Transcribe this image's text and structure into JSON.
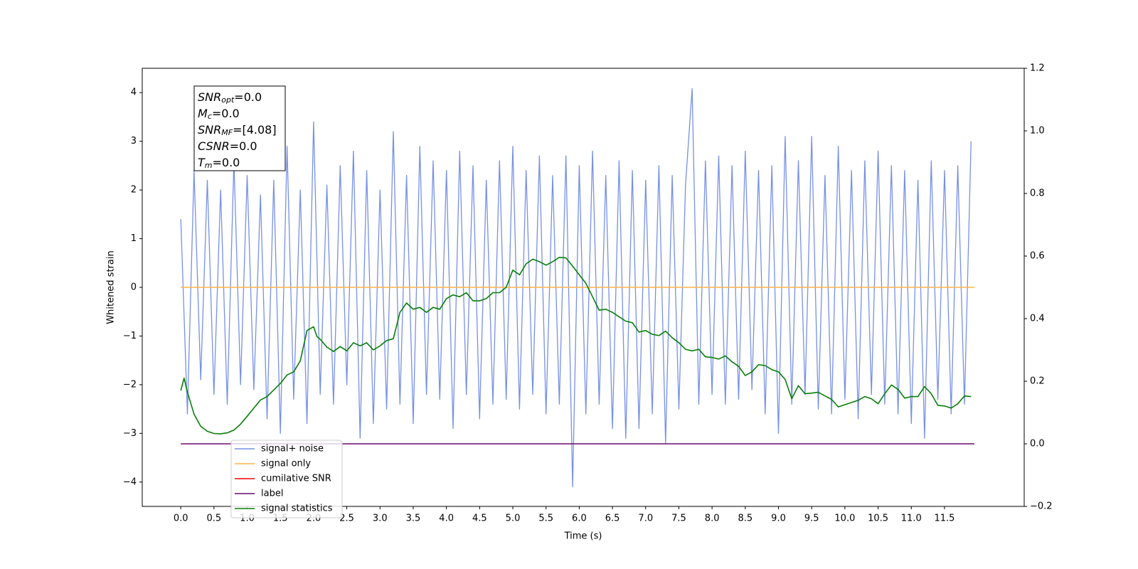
{
  "chart_data": {
    "type": "line",
    "xlabel": "Time (s)",
    "ylabel": "Whitened strain",
    "xlim": [
      -0.58,
      12.7
    ],
    "ylim": [
      -4.5,
      4.5
    ],
    "y2lim": [
      -0.2,
      1.2
    ],
    "xticks": [
      {
        "value": 0,
        "label": "0.0"
      },
      {
        "value": 0.5,
        "label": "0.5"
      },
      {
        "value": 1,
        "label": "1.0"
      },
      {
        "value": 1.5,
        "label": "1.5"
      },
      {
        "value": 2,
        "label": "2.0"
      },
      {
        "value": 2.5,
        "label": "2.5"
      },
      {
        "value": 3,
        "label": "3.0"
      },
      {
        "value": 3.5,
        "label": "3.5"
      },
      {
        "value": 4,
        "label": "4.0"
      },
      {
        "value": 4.5,
        "label": "4.5"
      },
      {
        "value": 5,
        "label": "5.0"
      },
      {
        "value": 5.5,
        "label": "5.5"
      },
      {
        "value": 6,
        "label": "6.0"
      },
      {
        "value": 6.5,
        "label": "6.5"
      },
      {
        "value": 7,
        "label": "7.0"
      },
      {
        "value": 7.5,
        "label": "7.5"
      },
      {
        "value": 8,
        "label": "8.0"
      },
      {
        "value": 8.5,
        "label": "8.5"
      },
      {
        "value": 9,
        "label": "9.0"
      },
      {
        "value": 9.5,
        "label": "9.5"
      },
      {
        "value": 10,
        "label": "10.0"
      },
      {
        "value": 10.5,
        "label": "10.5"
      },
      {
        "value": 11,
        "label": "11.0"
      },
      {
        "value": 11.5,
        "label": "11.5"
      }
    ],
    "yticks": [
      {
        "value": -4,
        "label": "−4"
      },
      {
        "value": -3,
        "label": "−3"
      },
      {
        "value": -2,
        "label": "−2"
      },
      {
        "value": -1,
        "label": "−1"
      },
      0,
      1,
      2,
      3,
      4
    ],
    "y2ticks": [
      {
        "value": -0.2,
        "label": "−0.2"
      },
      {
        "value": 0,
        "label": "0.0"
      },
      0.2,
      0.4,
      0.6,
      0.8,
      {
        "value": 1,
        "label": "1.0"
      },
      1.2
    ],
    "grid": false,
    "legend_position": "lower left",
    "annotations": [
      {
        "main": "SNR",
        "sub": "opt",
        "rest": "=0.0"
      },
      {
        "main": "M",
        "sub": "c",
        "rest": "=0.0"
      },
      {
        "main": "SNR",
        "sub": "MF",
        "rest": "=[4.08]"
      },
      {
        "main": "CSNR",
        "rest": "=0.0"
      },
      {
        "main": "T",
        "sub": "m",
        "rest": "=0.0"
      }
    ],
    "series": [
      {
        "name": "signal+ noise",
        "color": "#7790e6",
        "axis": "y",
        "x": [
          0,
          0.1,
          0.2,
          0.3,
          0.4,
          0.5,
          0.6,
          0.7,
          0.8,
          0.9,
          1,
          1.1,
          1.2,
          1.3,
          1.4,
          1.5,
          1.6,
          1.7,
          1.8,
          1.9,
          2,
          2.1,
          2.2,
          2.3,
          2.4,
          2.5,
          2.6,
          2.7,
          2.8,
          2.9,
          3,
          3.1,
          3.2,
          3.3,
          3.4,
          3.5,
          3.6,
          3.7,
          3.8,
          3.9,
          4,
          4.1,
          4.2,
          4.3,
          4.4,
          4.5,
          4.6,
          4.7,
          4.8,
          4.9,
          5,
          5.1,
          5.2,
          5.3,
          5.4,
          5.5,
          5.6,
          5.7,
          5.8,
          5.9,
          6,
          6.1,
          6.2,
          6.3,
          6.4,
          6.5,
          6.6,
          6.7,
          6.8,
          6.9,
          7,
          7.1,
          7.2,
          7.3,
          7.4,
          7.5,
          7.6,
          7.7,
          7.8,
          7.9,
          8,
          8.1,
          8.2,
          8.3,
          8.4,
          8.5,
          8.6,
          8.7,
          8.8,
          8.9,
          9,
          9.1,
          9.2,
          9.3,
          9.4,
          9.5,
          9.6,
          9.7,
          9.8,
          9.9,
          10,
          10.1,
          10.2,
          10.3,
          10.4,
          10.5,
          10.6,
          10.7,
          10.8,
          10.9,
          11,
          11.1,
          11.2,
          11.3,
          11.4,
          11.5,
          11.6,
          11.7,
          11.8,
          11.9
        ],
        "values": [
          1.4,
          -2.6,
          2.4,
          -1.9,
          2.2,
          -2.2,
          2,
          -2.4,
          2.6,
          -2,
          2.3,
          -2.1,
          1.9,
          -2.7,
          2.2,
          -3,
          2.9,
          -2.3,
          2,
          -2.8,
          3.4,
          -2.2,
          2.1,
          -2.4,
          2.5,
          -2,
          2.8,
          -3.1,
          2.4,
          -2.8,
          2,
          -2.5,
          3.2,
          -2.4,
          2.3,
          -2.8,
          2.9,
          -2.2,
          2.6,
          -2.3,
          2.4,
          -2.9,
          2.8,
          -2.2,
          2.5,
          -2.7,
          2.2,
          -2.4,
          2.6,
          -2.3,
          2.9,
          -2.5,
          2.4,
          -2.2,
          2.7,
          -2.6,
          2.3,
          -2.4,
          2.7,
          -4.1,
          2.5,
          -2.6,
          2.8,
          -2.4,
          2.3,
          -2.9,
          2.6,
          -3.1,
          2.4,
          -2.9,
          2.2,
          -2.6,
          2.5,
          -3.2,
          2.3,
          -2.5,
          2.1,
          4.08,
          -2.4,
          2.6,
          -2.2,
          2.7,
          -2.4,
          2.5,
          -2.3,
          2.8,
          -2.1,
          2.4,
          -2.6,
          2.5,
          -3,
          3.1,
          -2.4,
          2.6,
          -2.2,
          3.1,
          -2.5,
          2.3,
          -2.6,
          2.9,
          -2.3,
          2.4,
          -2.7,
          2.6,
          -2.2,
          2.8,
          -2.4,
          2.5,
          -2.6,
          2.4,
          -2.8,
          2.2,
          -3.1,
          2.6,
          -2.3,
          2.4,
          -2.6,
          2.5,
          -2.4,
          3
        ]
      },
      {
        "name": "signal only",
        "color": "#ffb347",
        "axis": "y",
        "x": [
          0,
          11.95
        ],
        "values": [
          0,
          0
        ]
      },
      {
        "name": "cumilative SNR",
        "color": "#ff0000",
        "axis": "y",
        "x": [],
        "values": []
      },
      {
        "name": "label",
        "color": "#6a0a6e",
        "axis": "y2",
        "x": [
          0,
          11.95
        ],
        "values": [
          0,
          0
        ]
      },
      {
        "name": "signal statistics",
        "color": "#087f08",
        "axis": "y2",
        "x": [
          0,
          0.05,
          0.1,
          0.2,
          0.3,
          0.4,
          0.5,
          0.6,
          0.7,
          0.8,
          0.9,
          1,
          1.1,
          1.2,
          1.3,
          1.4,
          1.5,
          1.6,
          1.7,
          1.8,
          1.9,
          2,
          2.05,
          2.1,
          2.2,
          2.3,
          2.4,
          2.5,
          2.6,
          2.7,
          2.8,
          2.9,
          3,
          3.1,
          3.2,
          3.3,
          3.4,
          3.5,
          3.6,
          3.7,
          3.8,
          3.9,
          4,
          4.1,
          4.2,
          4.3,
          4.4,
          4.5,
          4.6,
          4.7,
          4.8,
          4.9,
          5,
          5.1,
          5.2,
          5.3,
          5.4,
          5.5,
          5.6,
          5.7,
          5.8,
          5.9,
          6,
          6.1,
          6.2,
          6.3,
          6.4,
          6.5,
          6.6,
          6.7,
          6.8,
          6.9,
          7,
          7.1,
          7.2,
          7.3,
          7.4,
          7.5,
          7.6,
          7.7,
          7.8,
          7.9,
          8,
          8.1,
          8.2,
          8.3,
          8.4,
          8.5,
          8.6,
          8.7,
          8.8,
          8.9,
          9,
          9.1,
          9.2,
          9.3,
          9.4,
          9.5,
          9.6,
          9.7,
          9.8,
          9.9,
          10,
          10.1,
          10.2,
          10.3,
          10.4,
          10.5,
          10.6,
          10.7,
          10.8,
          10.9,
          11,
          11.1,
          11.2,
          11.3,
          11.4,
          11.5,
          11.6,
          11.7,
          11.8,
          11.9
        ],
        "values": [
          0.17,
          0.21,
          0.165,
          0.095,
          0.056,
          0.04,
          0.033,
          0.032,
          0.035,
          0.044,
          0.063,
          0.088,
          0.114,
          0.14,
          0.151,
          0.172,
          0.193,
          0.22,
          0.23,
          0.265,
          0.362,
          0.374,
          0.343,
          0.334,
          0.309,
          0.295,
          0.311,
          0.297,
          0.323,
          0.313,
          0.323,
          0.3,
          0.313,
          0.33,
          0.336,
          0.42,
          0.45,
          0.43,
          0.436,
          0.42,
          0.436,
          0.43,
          0.464,
          0.476,
          0.47,
          0.483,
          0.457,
          0.457,
          0.464,
          0.483,
          0.483,
          0.5,
          0.555,
          0.54,
          0.575,
          0.59,
          0.582,
          0.571,
          0.582,
          0.596,
          0.594,
          0.568,
          0.54,
          0.513,
          0.47,
          0.427,
          0.43,
          0.42,
          0.406,
          0.392,
          0.387,
          0.357,
          0.362,
          0.35,
          0.346,
          0.36,
          0.339,
          0.323,
          0.302,
          0.297,
          0.302,
          0.278,
          0.276,
          0.271,
          0.281,
          0.262,
          0.248,
          0.218,
          0.23,
          0.253,
          0.25,
          0.237,
          0.23,
          0.206,
          0.144,
          0.186,
          0.16,
          0.162,
          0.165,
          0.153,
          0.142,
          0.118,
          0.125,
          0.132,
          0.139,
          0.151,
          0.144,
          0.128,
          0.16,
          0.188,
          0.174,
          0.146,
          0.151,
          0.151,
          0.183,
          0.16,
          0.123,
          0.121,
          0.114,
          0.128,
          0.153,
          0.151
        ]
      }
    ]
  }
}
